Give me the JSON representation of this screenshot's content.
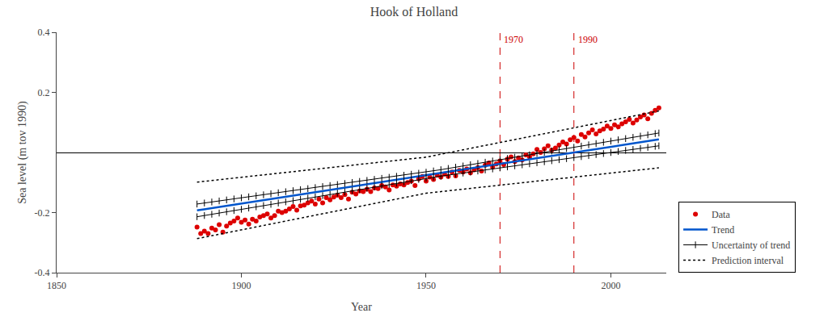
{
  "chart_data": {
    "type": "scatter",
    "title": "Hook of Holland",
    "x_label": "Year",
    "y_label": "Sea level (m tov 1990)",
    "xlim": [
      1850,
      2015
    ],
    "ylim": [
      -0.4,
      0.4
    ],
    "xticks": [
      1850,
      1900,
      1950,
      2000
    ],
    "yticks": [
      -0.4,
      -0.2,
      0.2,
      0.4
    ],
    "grid": false,
    "legend": "lower right",
    "annotations": [
      {
        "x": 1970,
        "text": "1970",
        "color": "#cc0000",
        "line_style": "dashed"
      },
      {
        "x": 1990,
        "text": "1990",
        "color": "#cc0000",
        "line_style": "dashed"
      }
    ],
    "series": [
      {
        "name": "Data",
        "type": "scatter",
        "color": "#dd0000",
        "marker": "circle",
        "x": [
          1888,
          1889,
          1890,
          1891,
          1892,
          1893,
          1894,
          1895,
          1896,
          1897,
          1898,
          1899,
          1900,
          1901,
          1902,
          1903,
          1904,
          1905,
          1906,
          1907,
          1908,
          1909,
          1910,
          1911,
          1912,
          1913,
          1914,
          1915,
          1916,
          1917,
          1918,
          1919,
          1920,
          1921,
          1922,
          1923,
          1924,
          1925,
          1926,
          1927,
          1928,
          1929,
          1930,
          1931,
          1932,
          1933,
          1934,
          1935,
          1936,
          1937,
          1938,
          1939,
          1940,
          1941,
          1942,
          1943,
          1944,
          1945,
          1946,
          1947,
          1948,
          1949,
          1950,
          1951,
          1952,
          1953,
          1954,
          1955,
          1956,
          1957,
          1958,
          1959,
          1960,
          1961,
          1962,
          1963,
          1964,
          1965,
          1966,
          1967,
          1968,
          1969,
          1970,
          1971,
          1972,
          1973,
          1974,
          1975,
          1976,
          1977,
          1978,
          1979,
          1980,
          1981,
          1982,
          1983,
          1984,
          1985,
          1986,
          1987,
          1988,
          1989,
          1990,
          1991,
          1992,
          1993,
          1994,
          1995,
          1996,
          1997,
          1998,
          1999,
          2000,
          2001,
          2002,
          2003,
          2004,
          2005,
          2006,
          2007,
          2008,
          2009,
          2010,
          2011,
          2012,
          2013
        ],
        "values": [
          -0.248,
          -0.27,
          -0.262,
          -0.27,
          -0.252,
          -0.258,
          -0.24,
          -0.265,
          -0.245,
          -0.235,
          -0.228,
          -0.218,
          -0.232,
          -0.225,
          -0.238,
          -0.222,
          -0.228,
          -0.215,
          -0.21,
          -0.205,
          -0.218,
          -0.21,
          -0.195,
          -0.2,
          -0.195,
          -0.188,
          -0.18,
          -0.192,
          -0.178,
          -0.175,
          -0.168,
          -0.162,
          -0.172,
          -0.155,
          -0.168,
          -0.15,
          -0.158,
          -0.148,
          -0.142,
          -0.15,
          -0.14,
          -0.155,
          -0.132,
          -0.138,
          -0.128,
          -0.13,
          -0.122,
          -0.13,
          -0.118,
          -0.12,
          -0.11,
          -0.115,
          -0.125,
          -0.108,
          -0.112,
          -0.105,
          -0.108,
          -0.1,
          -0.095,
          -0.11,
          -0.088,
          -0.08,
          -0.095,
          -0.082,
          -0.09,
          -0.075,
          -0.082,
          -0.072,
          -0.08,
          -0.065,
          -0.078,
          -0.06,
          -0.065,
          -0.055,
          -0.068,
          -0.058,
          -0.05,
          -0.062,
          -0.042,
          -0.035,
          -0.048,
          -0.038,
          -0.028,
          -0.04,
          -0.022,
          -0.015,
          -0.03,
          -0.018,
          -0.025,
          -0.008,
          -0.015,
          -0.005,
          0.01,
          0.0,
          0.012,
          0.022,
          0.008,
          0.015,
          0.025,
          0.035,
          0.028,
          0.042,
          0.05,
          0.038,
          0.06,
          0.052,
          0.065,
          0.075,
          0.062,
          0.072,
          0.078,
          0.088,
          0.08,
          0.092,
          0.085,
          0.095,
          0.102,
          0.11,
          0.098,
          0.108,
          0.118,
          0.125,
          0.112,
          0.13,
          0.14,
          0.148
        ]
      },
      {
        "name": "Trend",
        "type": "line",
        "color": "#0055cc",
        "line_style": "solid",
        "x": [
          1888,
          2013
        ],
        "values": [
          -0.19278,
          0.04347
        ]
      },
      {
        "name": "Uncertainty of trend",
        "type": "line",
        "color": "#000000",
        "line_style": "solid",
        "marker": "line-ns",
        "x": [
          1888,
          1890,
          1892,
          1894,
          1896,
          1898,
          1900,
          1902,
          1904,
          1906,
          1908,
          1910,
          1912,
          1914,
          1916,
          1918,
          1920,
          1922,
          1924,
          1926,
          1928,
          1930,
          1932,
          1934,
          1936,
          1938,
          1940,
          1942,
          1944,
          1946,
          1948,
          1950,
          1952,
          1954,
          1956,
          1958,
          1960,
          1962,
          1964,
          1966,
          1968,
          1970,
          1972,
          1974,
          1976,
          1978,
          1980,
          1982,
          1984,
          1986,
          1988,
          1990,
          1992,
          1994,
          1996,
          1998,
          2000,
          2002,
          2004,
          2006,
          2008,
          2010,
          2012,
          2013
        ],
        "values": [
          -0.17162,
          -0.1682,
          -0.16478,
          -0.16136,
          -0.15794,
          -0.15452,
          -0.1511,
          -0.14768,
          -0.14426,
          -0.14084,
          -0.13742,
          -0.134,
          -0.13058,
          -0.12716,
          -0.12374,
          -0.12032,
          -0.1169,
          -0.11348,
          -0.11006,
          -0.10664,
          -0.10322,
          -0.0998,
          -0.09638,
          -0.09296,
          -0.08954,
          -0.08612,
          -0.0827,
          -0.07928,
          -0.07586,
          -0.07244,
          -0.06902,
          -0.0656,
          -0.06146,
          -0.05732,
          -0.05318,
          -0.04904,
          -0.0449,
          -0.04076,
          -0.03662,
          -0.03248,
          -0.02834,
          -0.0242,
          -0.02006,
          -0.01592,
          -0.01178,
          -0.00764,
          -0.0035,
          0.00064,
          0.00478,
          0.00892,
          0.01306,
          0.0172,
          0.02134,
          0.02548,
          0.02962,
          0.03376,
          0.0379,
          0.04204,
          0.04618,
          0.05032,
          0.05446,
          0.0586,
          0.06274,
          0.06481
        ]
      },
      {
        "type": "line",
        "color": "#000000",
        "line_style": "solid",
        "marker": "line-ns",
        "x": [
          1888,
          1890,
          1892,
          1894,
          1896,
          1898,
          1900,
          1902,
          1904,
          1906,
          1908,
          1910,
          1912,
          1914,
          1916,
          1918,
          1920,
          1922,
          1924,
          1926,
          1928,
          1930,
          1932,
          1934,
          1936,
          1938,
          1940,
          1942,
          1944,
          1946,
          1948,
          1950,
          1952,
          1954,
          1956,
          1958,
          1960,
          1962,
          1964,
          1966,
          1968,
          1970,
          1972,
          1974,
          1976,
          1978,
          1980,
          1982,
          1984,
          1986,
          1988,
          1990,
          1992,
          1994,
          1996,
          1998,
          2000,
          2002,
          2004,
          2006,
          2008,
          2010,
          2012,
          2013
        ],
        "values": [
          -0.21394,
          -0.2098,
          -0.20566,
          -0.20152,
          -0.19738,
          -0.19324,
          -0.1891,
          -0.18496,
          -0.18082,
          -0.17668,
          -0.17254,
          -0.1684,
          -0.16426,
          -0.16012,
          -0.15598,
          -0.15184,
          -0.1477,
          -0.14356,
          -0.13942,
          -0.13528,
          -0.13114,
          -0.127,
          -0.12286,
          -0.11872,
          -0.11458,
          -0.11044,
          -0.1063,
          -0.10216,
          -0.09802,
          -0.09388,
          -0.08974,
          -0.0856,
          -0.08218,
          -0.07876,
          -0.07534,
          -0.07192,
          -0.0685,
          -0.06508,
          -0.06166,
          -0.05824,
          -0.05482,
          -0.0514,
          -0.04798,
          -0.04456,
          -0.04114,
          -0.03772,
          -0.0343,
          -0.03088,
          -0.02746,
          -0.02404,
          -0.02062,
          -0.0172,
          -0.01378,
          -0.01036,
          -0.00694,
          -0.00352,
          -0.0001,
          0.00332,
          0.00674,
          0.01016,
          0.01358,
          0.017,
          0.02042,
          0.02213
        ]
      },
      {
        "name": "Prediction interval",
        "type": "line",
        "color": "#000000",
        "line_style": "dotted",
        "x": [
          1888,
          1950,
          2013
        ],
        "values": [
          -0.09868,
          -0.0156,
          0.13812
        ]
      },
      {
        "type": "line",
        "color": "#000000",
        "line_style": "dotted",
        "x": [
          1888,
          1950,
          2013
        ],
        "values": [
          -0.28688,
          -0.1356,
          -0.05118
        ]
      }
    ]
  }
}
